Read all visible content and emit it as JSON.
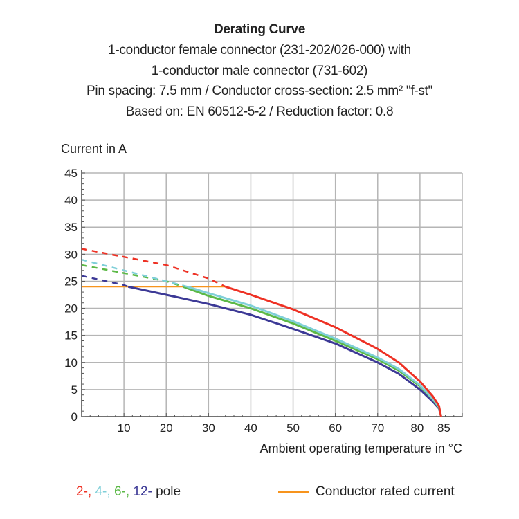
{
  "chart_data": {
    "type": "line",
    "title": "Derating Curve",
    "subtitle": [
      "1-conductor female connector (231-202/026-000) with",
      "1-conductor male connector (731-602)",
      "Pin spacing: 7.5 mm / Conductor cross-section: 2.5 mm² \"f-st\"",
      "Based on: EN 60512-5-2 / Reduction factor: 0.8"
    ],
    "ylabel": "Current in A",
    "xlabel": "Ambient operating temperature in °C",
    "xlim": [
      0,
      90
    ],
    "ylim": [
      0,
      45
    ],
    "xticks": [
      10,
      20,
      30,
      40,
      50,
      60,
      70,
      80,
      85
    ],
    "yticks": [
      0,
      5,
      10,
      15,
      20,
      25,
      30,
      35,
      40,
      45
    ],
    "grid": true,
    "series": [
      {
        "name": "2-",
        "color": "#ee3124",
        "dashed": [
          [
            0,
            31
          ],
          [
            10,
            29.5
          ],
          [
            20,
            28
          ],
          [
            30,
            25.5
          ],
          [
            34,
            24
          ]
        ],
        "solid": [
          [
            34,
            24
          ],
          [
            40,
            22.5
          ],
          [
            50,
            19.8
          ],
          [
            60,
            16.5
          ],
          [
            70,
            12.5
          ],
          [
            75,
            10
          ],
          [
            80,
            6.5
          ],
          [
            83,
            3.8
          ],
          [
            84.5,
            2
          ],
          [
            85,
            0
          ]
        ]
      },
      {
        "name": "4-",
        "color": "#7fcfd8",
        "dashed": [
          [
            0,
            29
          ],
          [
            10,
            27
          ],
          [
            20,
            25
          ],
          [
            25,
            24
          ]
        ],
        "solid": [
          [
            25,
            24
          ],
          [
            30,
            22.8
          ],
          [
            40,
            20.5
          ],
          [
            50,
            17.6
          ],
          [
            60,
            14.4
          ],
          [
            70,
            10.9
          ],
          [
            75,
            8.8
          ],
          [
            80,
            5.8
          ],
          [
            83,
            3.3
          ],
          [
            84.5,
            1.8
          ],
          [
            85,
            0
          ]
        ]
      },
      {
        "name": "6-",
        "color": "#5cb947",
        "dashed": [
          [
            0,
            28
          ],
          [
            10,
            26.5
          ],
          [
            20,
            25
          ],
          [
            24,
            24
          ]
        ],
        "solid": [
          [
            24,
            24
          ],
          [
            30,
            22.3
          ],
          [
            40,
            20
          ],
          [
            50,
            17.2
          ],
          [
            60,
            14
          ],
          [
            70,
            10.6
          ],
          [
            75,
            8.5
          ],
          [
            80,
            5.6
          ],
          [
            83,
            3.2
          ],
          [
            84.5,
            1.7
          ],
          [
            85,
            0
          ]
        ]
      },
      {
        "name": "12-",
        "color": "#3c3996",
        "dashed": [
          [
            0,
            26
          ],
          [
            10,
            24.3
          ],
          [
            11,
            24
          ]
        ],
        "solid": [
          [
            11,
            24
          ],
          [
            20,
            22.5
          ],
          [
            30,
            20.8
          ],
          [
            40,
            18.8
          ],
          [
            50,
            16.2
          ],
          [
            60,
            13.5
          ],
          [
            70,
            10
          ],
          [
            75,
            7.9
          ],
          [
            80,
            5
          ],
          [
            83,
            2.8
          ],
          [
            84.5,
            1.5
          ],
          [
            85,
            0
          ]
        ]
      }
    ],
    "rated_current": {
      "name": "Conductor rated current",
      "color": "#f7941d",
      "points": [
        [
          0,
          24
        ],
        [
          34,
          24
        ]
      ]
    },
    "legend": {
      "poles_suffix": "pole",
      "placement": "bottom"
    }
  }
}
